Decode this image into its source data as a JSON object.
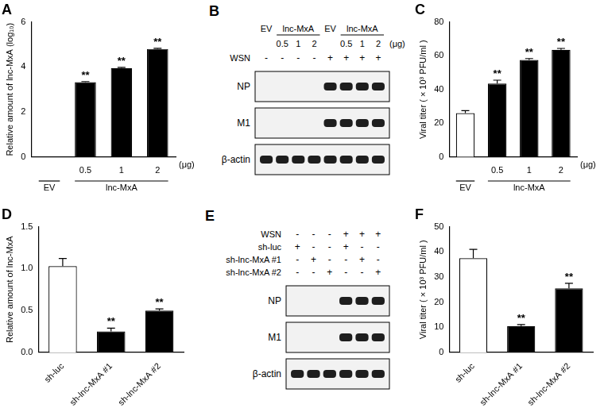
{
  "chart_data": [
    {
      "type": "bar",
      "title": "A",
      "categories": [
        null,
        "0.5",
        "1",
        "2"
      ],
      "x_groups": [
        {
          "label": "EV",
          "count": 1
        },
        {
          "label": "lnc-MxA",
          "count": 3
        }
      ],
      "x_label": "(μg)",
      "y_label": "Relative amount of lnc-MxA (log₁₀)",
      "values": [
        0,
        3.32,
        3.95,
        4.8
      ],
      "errors": [
        0,
        0.03,
        0.03,
        0.03
      ],
      "annotations": [
        null,
        "**",
        "**",
        "**"
      ],
      "colors": [
        "#ffffff",
        "#000000",
        "#000000",
        "#000000"
      ],
      "ylim": [
        0,
        6
      ],
      "yticks": [
        0,
        2,
        4,
        6
      ],
      "grid": false
    },
    {
      "type": "bar",
      "title": "C",
      "categories": [
        null,
        "0.5",
        "1",
        "2"
      ],
      "x_groups": [
        {
          "label": "EV",
          "count": 1
        },
        {
          "label": "lnc-MxA",
          "count": 3
        }
      ],
      "x_label": "(μg)",
      "y_label": "Viral titer ( × 10³ PFU/ml )",
      "values": [
        26,
        43.5,
        57.5,
        63.5
      ],
      "errors": [
        1.5,
        2,
        0.8,
        0.8
      ],
      "annotations": [
        null,
        "**",
        "**",
        "**"
      ],
      "colors": [
        "#ffffff",
        "#000000",
        "#000000",
        "#000000"
      ],
      "ylim": [
        0,
        80
      ],
      "yticks": [
        0,
        20,
        40,
        60,
        80
      ],
      "grid": false
    },
    {
      "type": "bar",
      "title": "D",
      "categories": [
        "sh-luc",
        "sh-lnc-MxA #1",
        "sh-lnc-MxA #2"
      ],
      "y_label": "Relative amount of lnc-MxA",
      "values": [
        1.03,
        0.25,
        0.5
      ],
      "errors": [
        0.09,
        0.04,
        0.02
      ],
      "annotations": [
        null,
        "**",
        "**"
      ],
      "colors": [
        "#ffffff",
        "#000000",
        "#000000"
      ],
      "ylim": [
        0,
        1.5
      ],
      "yticks": [
        {
          "value": 0,
          "label": "0.0"
        },
        0.5,
        {
          "value": 1,
          "label": "1.0"
        },
        1.5
      ],
      "grid": false
    },
    {
      "type": "bar",
      "title": "F",
      "categories": [
        "sh-luc",
        "sh-lnc-MxA #1",
        "sh-lnc-MxA #2"
      ],
      "y_label": "Viral titer ( × 10³ PFU/ml )",
      "values": [
        37.5,
        10.5,
        25.5
      ],
      "errors": [
        3.5,
        0.6,
        2
      ],
      "annotations": [
        null,
        "**",
        "**"
      ],
      "colors": [
        "#ffffff",
        "#000000",
        "#000000"
      ],
      "ylim": [
        0,
        50
      ],
      "yticks": [
        0,
        10,
        20,
        30,
        40,
        50
      ],
      "grid": false
    }
  ],
  "blots": [
    {
      "title": "B",
      "header": [
        {
          "label": "EV",
          "count": 1
        },
        {
          "label": "lnc-MxA",
          "count": 3
        },
        {
          "label": "EV",
          "count": 1
        },
        {
          "label": "lnc-MxA",
          "count": 3
        }
      ],
      "sub_header": [
        null,
        "0.5",
        "1",
        "2",
        null,
        "0.5",
        "1",
        "2"
      ],
      "unit": "(μg)",
      "rows": [
        {
          "label": "WSN",
          "marks": [
            "-",
            "-",
            "-",
            "-",
            "+",
            "+",
            "+",
            "+"
          ]
        }
      ],
      "bands": [
        {
          "label": "NP",
          "present": [
            false,
            false,
            false,
            false,
            true,
            true,
            true,
            true
          ]
        },
        {
          "label": "M1",
          "present": [
            false,
            false,
            false,
            false,
            true,
            true,
            true,
            true
          ]
        },
        {
          "label": "β-actin",
          "present": [
            true,
            true,
            true,
            true,
            true,
            true,
            true,
            true
          ]
        }
      ]
    },
    {
      "title": "E",
      "rows": [
        {
          "label": "WSN",
          "marks": [
            "-",
            "-",
            "-",
            "+",
            "+",
            "+"
          ]
        },
        {
          "label": "sh-luc",
          "marks": [
            "+",
            "-",
            "-",
            "+",
            "-",
            "-"
          ]
        },
        {
          "label": "sh-lnc-MxA #1",
          "marks": [
            "-",
            "+",
            "-",
            "-",
            "+",
            "-"
          ]
        },
        {
          "label": "sh-lnc-MxA #2",
          "marks": [
            "-",
            "-",
            "+",
            "-",
            "-",
            "+"
          ]
        }
      ],
      "bands": [
        {
          "label": "NP",
          "present": [
            false,
            false,
            false,
            true,
            true,
            true
          ]
        },
        {
          "label": "M1",
          "present": [
            false,
            false,
            false,
            true,
            true,
            true
          ]
        },
        {
          "label": "β-actin",
          "present": [
            true,
            true,
            true,
            true,
            true,
            true
          ]
        }
      ]
    }
  ]
}
